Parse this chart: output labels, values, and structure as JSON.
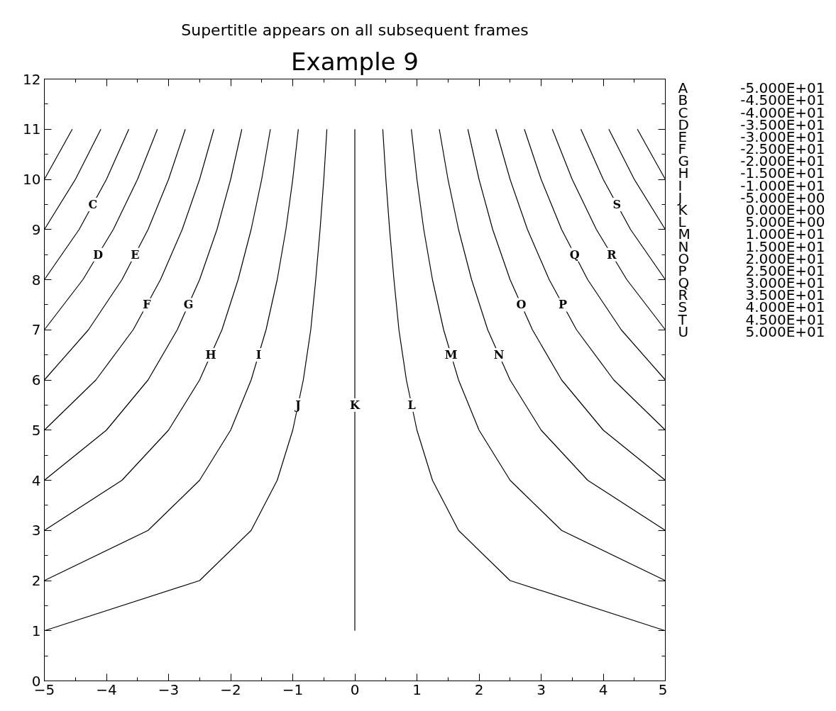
{
  "chart_data": {
    "type": "line",
    "subtitle": "Supertitle appears on all subsequent frames",
    "title": "Example 9",
    "xlim": [
      -5,
      5
    ],
    "ylim": [
      0,
      12
    ],
    "xticks": [
      -5,
      -4,
      -3,
      -2,
      -1,
      0,
      1,
      2,
      3,
      4,
      5
    ],
    "yticks": [
      0,
      1,
      2,
      3,
      4,
      5,
      6,
      7,
      8,
      9,
      10,
      11,
      12
    ],
    "grid": false,
    "legend": false,
    "series": [
      {
        "color": "#000000",
        "x": [
          -5,
          -4.55
        ],
        "values": [
          10,
          11
        ]
      },
      {
        "color": "#000000",
        "x": [
          -5,
          -4.5,
          -4.09
        ],
        "values": [
          9,
          10,
          11
        ]
      },
      {
        "name": "C",
        "color": "#000000",
        "x": [
          -5,
          -4.44,
          -4,
          -3.64
        ],
        "values": [
          8,
          9,
          10,
          11
        ]
      },
      {
        "name": "D",
        "color": "#000000",
        "x": [
          -5,
          -4.38,
          -3.89,
          -3.5,
          -3.18
        ],
        "values": [
          7,
          8,
          9,
          10,
          11
        ]
      },
      {
        "name": "E",
        "color": "#000000",
        "x": [
          -5,
          -4.29,
          -3.75,
          -3.33,
          -3,
          -2.73
        ],
        "values": [
          6,
          7,
          8,
          9,
          10,
          11
        ]
      },
      {
        "name": "F",
        "color": "#000000",
        "x": [
          -5,
          -4.17,
          -3.57,
          -3.13,
          -2.78,
          -2.5,
          -2.27
        ],
        "values": [
          5,
          6,
          7,
          8,
          9,
          10,
          11
        ]
      },
      {
        "name": "G",
        "color": "#000000",
        "x": [
          -5,
          -4,
          -3.33,
          -2.86,
          -2.5,
          -2.22,
          -2,
          -1.82
        ],
        "values": [
          4,
          5,
          6,
          7,
          8,
          9,
          10,
          11
        ]
      },
      {
        "name": "H",
        "color": "#000000",
        "x": [
          -5,
          -3.75,
          -3,
          -2.5,
          -2.14,
          -1.88,
          -1.67,
          -1.5,
          -1.36
        ],
        "values": [
          3,
          4,
          5,
          6,
          7,
          8,
          9,
          10,
          11
        ]
      },
      {
        "name": "I",
        "color": "#000000",
        "x": [
          -5,
          -3.33,
          -2.5,
          -2,
          -1.67,
          -1.43,
          -1.25,
          -1.11,
          -1,
          -0.91
        ],
        "values": [
          2,
          3,
          4,
          5,
          6,
          7,
          8,
          9,
          10,
          11
        ]
      },
      {
        "name": "J",
        "color": "#000000",
        "x": [
          -5,
          -2.5,
          -1.67,
          -1.25,
          -1,
          -0.83,
          -0.71,
          -0.63,
          -0.56,
          -0.5,
          -0.45
        ],
        "values": [
          1,
          2,
          3,
          4,
          5,
          6,
          7,
          8,
          9,
          10,
          11
        ]
      },
      {
        "name": "K",
        "color": "#000000",
        "x": [
          0,
          0,
          0,
          0,
          0,
          0,
          0,
          0,
          0,
          0,
          0
        ],
        "values": [
          1,
          2,
          3,
          4,
          5,
          6,
          7,
          8,
          9,
          10,
          11
        ]
      },
      {
        "name": "L",
        "color": "#000000",
        "x": [
          5,
          2.5,
          1.67,
          1.25,
          1,
          0.83,
          0.71,
          0.63,
          0.56,
          0.5,
          0.45
        ],
        "values": [
          1,
          2,
          3,
          4,
          5,
          6,
          7,
          8,
          9,
          10,
          11
        ]
      },
      {
        "name": "M",
        "color": "#000000",
        "x": [
          5,
          3.33,
          2.5,
          2,
          1.67,
          1.43,
          1.25,
          1.11,
          1,
          0.91
        ],
        "values": [
          2,
          3,
          4,
          5,
          6,
          7,
          8,
          9,
          10,
          11
        ]
      },
      {
        "name": "N",
        "color": "#000000",
        "x": [
          5,
          3.75,
          3,
          2.5,
          2.14,
          1.88,
          1.67,
          1.5,
          1.36
        ],
        "values": [
          3,
          4,
          5,
          6,
          7,
          8,
          9,
          10,
          11
        ]
      },
      {
        "name": "O",
        "color": "#000000",
        "x": [
          5,
          4,
          3.33,
          2.86,
          2.5,
          2.22,
          2,
          1.82
        ],
        "values": [
          4,
          5,
          6,
          7,
          8,
          9,
          10,
          11
        ]
      },
      {
        "name": "P",
        "color": "#000000",
        "x": [
          5,
          4.17,
          3.57,
          3.13,
          2.78,
          2.5,
          2.27
        ],
        "values": [
          5,
          6,
          7,
          8,
          9,
          10,
          11
        ]
      },
      {
        "name": "Q",
        "color": "#000000",
        "x": [
          5,
          4.29,
          3.75,
          3.33,
          3,
          2.73
        ],
        "values": [
          6,
          7,
          8,
          9,
          10,
          11
        ]
      },
      {
        "name": "R",
        "color": "#000000",
        "x": [
          5,
          4.38,
          3.89,
          3.5,
          3.18
        ],
        "values": [
          7,
          8,
          9,
          10,
          11
        ]
      },
      {
        "name": "S",
        "color": "#000000",
        "x": [
          5,
          4.44,
          4,
          3.64
        ],
        "values": [
          8,
          9,
          10,
          11
        ]
      },
      {
        "color": "#000000",
        "x": [
          5,
          4.5,
          4.09
        ],
        "values": [
          9,
          10,
          11
        ]
      },
      {
        "color": "#000000",
        "x": [
          5,
          4.55
        ],
        "values": [
          10,
          11
        ]
      }
    ],
    "annotations": [
      "A -5.000E+01",
      "B -4.500E+01",
      "C -4.000E+01",
      "D -3.500E+01",
      "E -3.000E+01",
      "F -2.500E+01",
      "G -2.000E+01",
      "H -1.500E+01",
      "I -1.000E+01",
      "J -5.000E+00",
      "K 0.000E+00",
      "L 5.000E+00",
      "M 1.000E+01",
      "N 1.500E+01",
      "O 2.000E+01",
      "P 2.500E+01",
      "Q 3.000E+01",
      "R 3.500E+01",
      "S 4.000E+01",
      "T 4.500E+01",
      "U 5.000E+01"
    ]
  }
}
